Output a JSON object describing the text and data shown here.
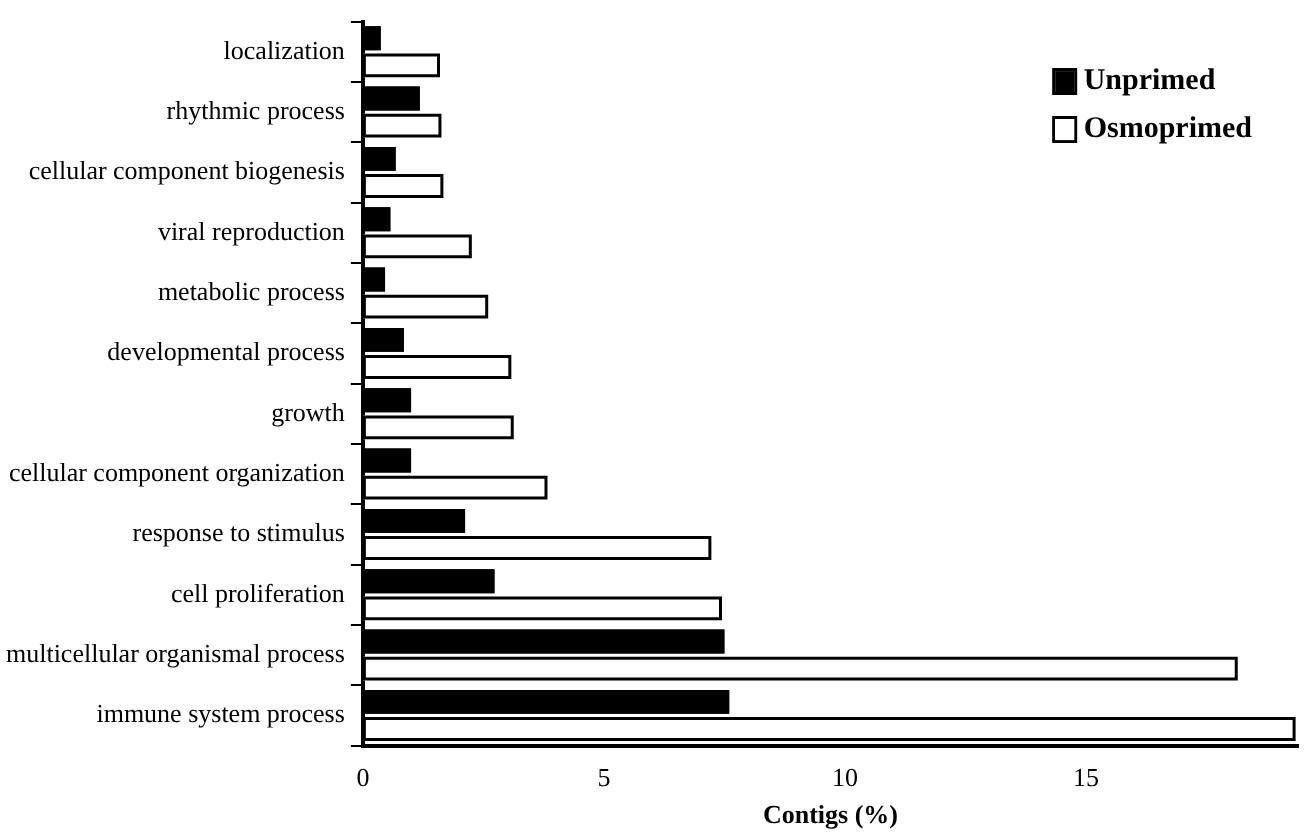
{
  "chart_data": {
    "type": "bar",
    "orientation": "horizontal",
    "xlabel": "Contigs (%)",
    "categories": [
      "localization",
      "rhythmic process",
      "cellular component biogenesis",
      "viral reproduction",
      "metabolic process",
      "developmental process",
      "growth",
      "cellular component organization",
      "response to stimulus",
      "cell proliferation",
      "multicellular organismal process",
      "immune system process"
    ],
    "series": [
      {
        "name": "Unprimed",
        "color": "#000000",
        "values": [
          0.37,
          1.18,
          0.68,
          0.57,
          0.46,
          0.85,
          1.0,
          1.0,
          2.12,
          2.73,
          7.5,
          7.6
        ]
      },
      {
        "name": "Osmoprimed",
        "color": "#ffffff",
        "values": [
          1.6,
          1.63,
          1.67,
          2.26,
          2.6,
          3.08,
          3.13,
          3.83,
          7.23,
          7.45,
          18.15,
          19.35
        ]
      }
    ],
    "xlim": [
      0,
      19.4
    ],
    "xticks": [
      0,
      5,
      10,
      15
    ],
    "grid": false,
    "legend": "top right"
  }
}
